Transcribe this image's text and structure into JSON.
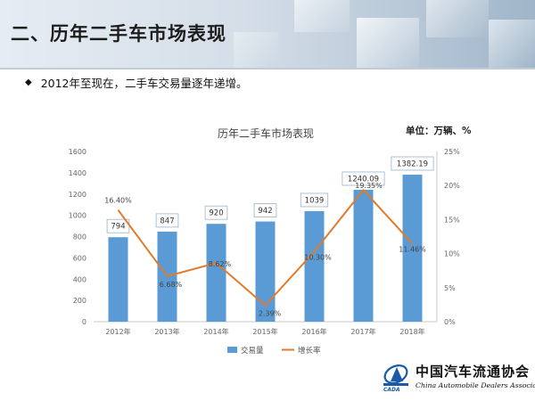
{
  "header": {
    "title": "二、历年二手车市场表现"
  },
  "bullet": {
    "text": "2012年至现在，二手车交易量逐年递增。"
  },
  "logo": {
    "cn": "中国汽车流通协会",
    "en": "China Automobile Dealers Association",
    "abbr": "CADA"
  },
  "chart_data": {
    "type": "bar",
    "title": "历年二手车市场表现",
    "unit_note": "单位：万辆、%",
    "categories": [
      "2012年",
      "2013年",
      "2014年",
      "2015年",
      "2016年",
      "2017年",
      "2018年"
    ],
    "series": [
      {
        "name": "交易量",
        "kind": "bar",
        "axis": "left",
        "values": [
          794,
          847,
          920,
          942,
          1039,
          1240.09,
          1382.19
        ],
        "labels": [
          "794",
          "847",
          "920",
          "942",
          "1039",
          "1240.09",
          "1382.19"
        ]
      },
      {
        "name": "增长率",
        "kind": "line",
        "axis": "right",
        "values": [
          16.4,
          6.68,
          8.62,
          2.39,
          10.3,
          19.35,
          11.46
        ],
        "labels": [
          "16.40%",
          "6.68%",
          "8.62%",
          "2.39%",
          "10.30%",
          "19.35%",
          "11.46%"
        ]
      }
    ],
    "y_left": {
      "min": 0,
      "max": 1600,
      "ticks": [
        "0",
        "200",
        "400",
        "600",
        "800",
        "1000",
        "1200",
        "1400",
        "1600"
      ]
    },
    "y_right": {
      "min": 0,
      "max": 25,
      "ticks": [
        "0%",
        "5%",
        "10%",
        "15%",
        "20%",
        "25%"
      ]
    },
    "colors": {
      "bar": "#5b9bd5",
      "line": "#e07b2d"
    },
    "legend_position": "bottom",
    "grid": false
  }
}
